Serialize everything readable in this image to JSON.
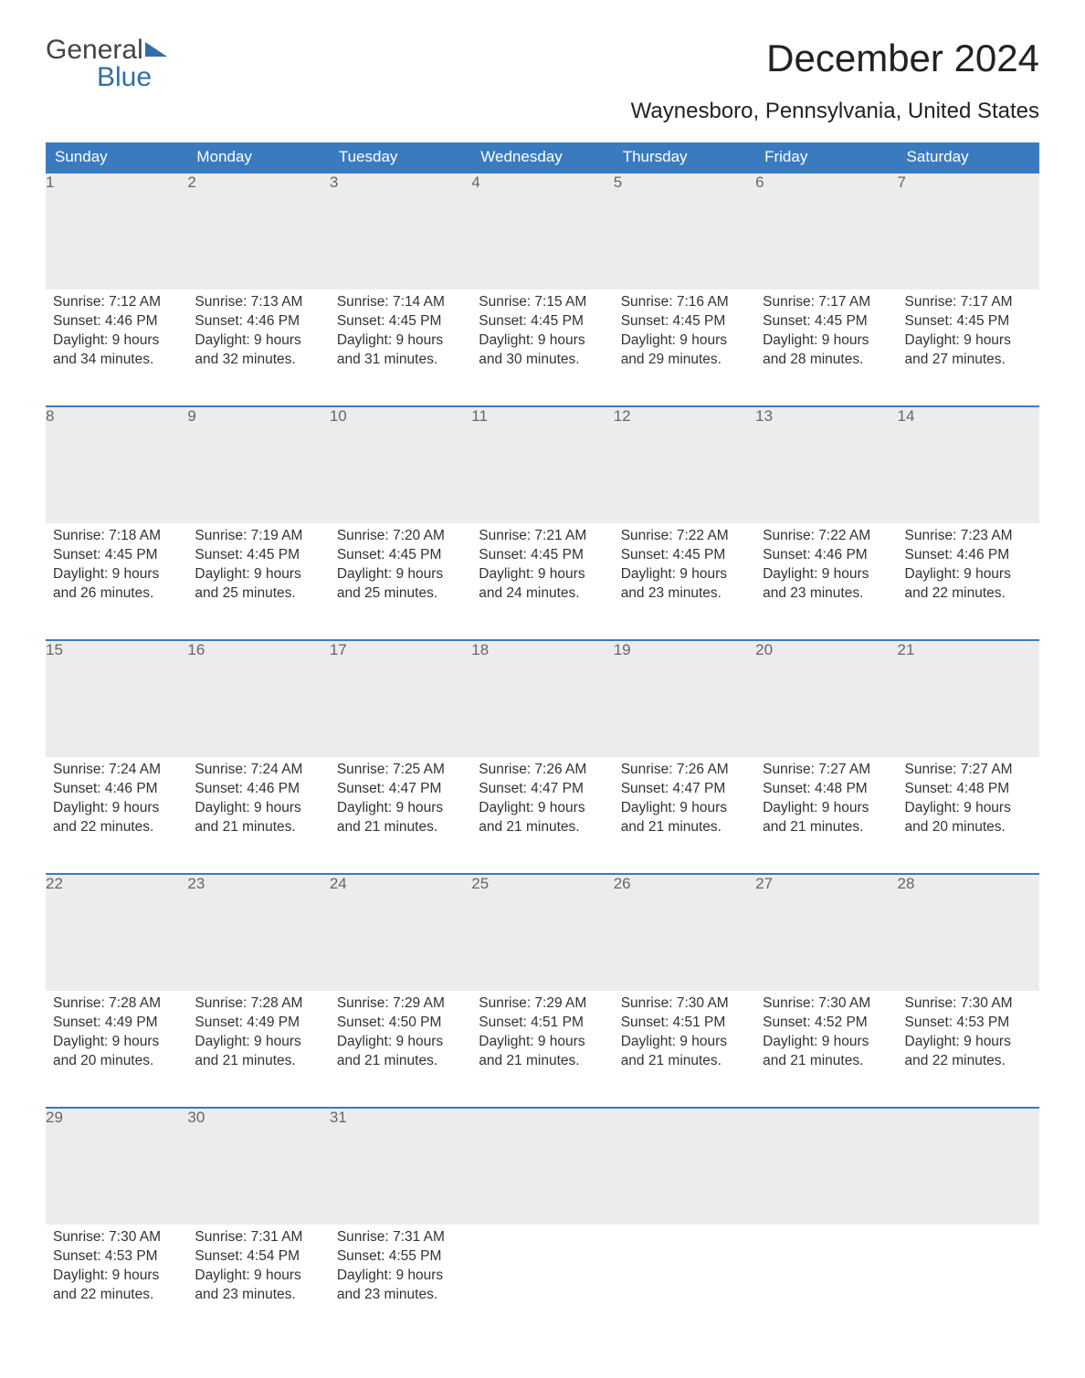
{
  "logo": {
    "word1": "General",
    "word2": "Blue"
  },
  "title": "December 2024",
  "subtitle": "Waynesboro, Pennsylvania, United States",
  "colors": {
    "header_bg": "#3a7bbf",
    "header_text": "#ffffff",
    "daynum_bg": "#ececec",
    "rule": "#3a7bbf",
    "logo_accent": "#2f6fa8"
  },
  "day_labels": [
    "Sunday",
    "Monday",
    "Tuesday",
    "Wednesday",
    "Thursday",
    "Friday",
    "Saturday"
  ],
  "weeks": [
    [
      {
        "n": "1",
        "sr": "Sunrise: 7:12 AM",
        "ss": "Sunset: 4:46 PM",
        "d1": "Daylight: 9 hours",
        "d2": "and 34 minutes."
      },
      {
        "n": "2",
        "sr": "Sunrise: 7:13 AM",
        "ss": "Sunset: 4:46 PM",
        "d1": "Daylight: 9 hours",
        "d2": "and 32 minutes."
      },
      {
        "n": "3",
        "sr": "Sunrise: 7:14 AM",
        "ss": "Sunset: 4:45 PM",
        "d1": "Daylight: 9 hours",
        "d2": "and 31 minutes."
      },
      {
        "n": "4",
        "sr": "Sunrise: 7:15 AM",
        "ss": "Sunset: 4:45 PM",
        "d1": "Daylight: 9 hours",
        "d2": "and 30 minutes."
      },
      {
        "n": "5",
        "sr": "Sunrise: 7:16 AM",
        "ss": "Sunset: 4:45 PM",
        "d1": "Daylight: 9 hours",
        "d2": "and 29 minutes."
      },
      {
        "n": "6",
        "sr": "Sunrise: 7:17 AM",
        "ss": "Sunset: 4:45 PM",
        "d1": "Daylight: 9 hours",
        "d2": "and 28 minutes."
      },
      {
        "n": "7",
        "sr": "Sunrise: 7:17 AM",
        "ss": "Sunset: 4:45 PM",
        "d1": "Daylight: 9 hours",
        "d2": "and 27 minutes."
      }
    ],
    [
      {
        "n": "8",
        "sr": "Sunrise: 7:18 AM",
        "ss": "Sunset: 4:45 PM",
        "d1": "Daylight: 9 hours",
        "d2": "and 26 minutes."
      },
      {
        "n": "9",
        "sr": "Sunrise: 7:19 AM",
        "ss": "Sunset: 4:45 PM",
        "d1": "Daylight: 9 hours",
        "d2": "and 25 minutes."
      },
      {
        "n": "10",
        "sr": "Sunrise: 7:20 AM",
        "ss": "Sunset: 4:45 PM",
        "d1": "Daylight: 9 hours",
        "d2": "and 25 minutes."
      },
      {
        "n": "11",
        "sr": "Sunrise: 7:21 AM",
        "ss": "Sunset: 4:45 PM",
        "d1": "Daylight: 9 hours",
        "d2": "and 24 minutes."
      },
      {
        "n": "12",
        "sr": "Sunrise: 7:22 AM",
        "ss": "Sunset: 4:45 PM",
        "d1": "Daylight: 9 hours",
        "d2": "and 23 minutes."
      },
      {
        "n": "13",
        "sr": "Sunrise: 7:22 AM",
        "ss": "Sunset: 4:46 PM",
        "d1": "Daylight: 9 hours",
        "d2": "and 23 minutes."
      },
      {
        "n": "14",
        "sr": "Sunrise: 7:23 AM",
        "ss": "Sunset: 4:46 PM",
        "d1": "Daylight: 9 hours",
        "d2": "and 22 minutes."
      }
    ],
    [
      {
        "n": "15",
        "sr": "Sunrise: 7:24 AM",
        "ss": "Sunset: 4:46 PM",
        "d1": "Daylight: 9 hours",
        "d2": "and 22 minutes."
      },
      {
        "n": "16",
        "sr": "Sunrise: 7:24 AM",
        "ss": "Sunset: 4:46 PM",
        "d1": "Daylight: 9 hours",
        "d2": "and 21 minutes."
      },
      {
        "n": "17",
        "sr": "Sunrise: 7:25 AM",
        "ss": "Sunset: 4:47 PM",
        "d1": "Daylight: 9 hours",
        "d2": "and 21 minutes."
      },
      {
        "n": "18",
        "sr": "Sunrise: 7:26 AM",
        "ss": "Sunset: 4:47 PM",
        "d1": "Daylight: 9 hours",
        "d2": "and 21 minutes."
      },
      {
        "n": "19",
        "sr": "Sunrise: 7:26 AM",
        "ss": "Sunset: 4:47 PM",
        "d1": "Daylight: 9 hours",
        "d2": "and 21 minutes."
      },
      {
        "n": "20",
        "sr": "Sunrise: 7:27 AM",
        "ss": "Sunset: 4:48 PM",
        "d1": "Daylight: 9 hours",
        "d2": "and 21 minutes."
      },
      {
        "n": "21",
        "sr": "Sunrise: 7:27 AM",
        "ss": "Sunset: 4:48 PM",
        "d1": "Daylight: 9 hours",
        "d2": "and 20 minutes."
      }
    ],
    [
      {
        "n": "22",
        "sr": "Sunrise: 7:28 AM",
        "ss": "Sunset: 4:49 PM",
        "d1": "Daylight: 9 hours",
        "d2": "and 20 minutes."
      },
      {
        "n": "23",
        "sr": "Sunrise: 7:28 AM",
        "ss": "Sunset: 4:49 PM",
        "d1": "Daylight: 9 hours",
        "d2": "and 21 minutes."
      },
      {
        "n": "24",
        "sr": "Sunrise: 7:29 AM",
        "ss": "Sunset: 4:50 PM",
        "d1": "Daylight: 9 hours",
        "d2": "and 21 minutes."
      },
      {
        "n": "25",
        "sr": "Sunrise: 7:29 AM",
        "ss": "Sunset: 4:51 PM",
        "d1": "Daylight: 9 hours",
        "d2": "and 21 minutes."
      },
      {
        "n": "26",
        "sr": "Sunrise: 7:30 AM",
        "ss": "Sunset: 4:51 PM",
        "d1": "Daylight: 9 hours",
        "d2": "and 21 minutes."
      },
      {
        "n": "27",
        "sr": "Sunrise: 7:30 AM",
        "ss": "Sunset: 4:52 PM",
        "d1": "Daylight: 9 hours",
        "d2": "and 21 minutes."
      },
      {
        "n": "28",
        "sr": "Sunrise: 7:30 AM",
        "ss": "Sunset: 4:53 PM",
        "d1": "Daylight: 9 hours",
        "d2": "and 22 minutes."
      }
    ],
    [
      {
        "n": "29",
        "sr": "Sunrise: 7:30 AM",
        "ss": "Sunset: 4:53 PM",
        "d1": "Daylight: 9 hours",
        "d2": "and 22 minutes."
      },
      {
        "n": "30",
        "sr": "Sunrise: 7:31 AM",
        "ss": "Sunset: 4:54 PM",
        "d1": "Daylight: 9 hours",
        "d2": "and 23 minutes."
      },
      {
        "n": "31",
        "sr": "Sunrise: 7:31 AM",
        "ss": "Sunset: 4:55 PM",
        "d1": "Daylight: 9 hours",
        "d2": "and 23 minutes."
      },
      null,
      null,
      null,
      null
    ]
  ]
}
